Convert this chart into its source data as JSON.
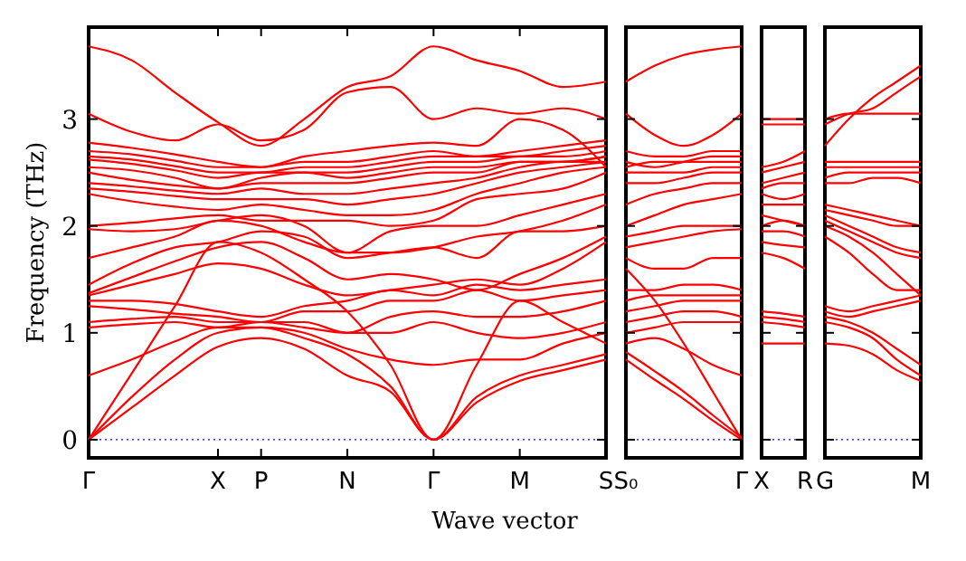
{
  "chart_data": [
    {
      "type": "line",
      "ylabel": "Frequency (THz)",
      "xlabel": "Wave vector",
      "categories": [
        "Γ",
        null,
        null,
        "X",
        "P",
        null,
        "N",
        null,
        "Γ",
        null,
        "M",
        null,
        "S"
      ],
      "ylim": [
        -0.17,
        3.86
      ],
      "yticks": [
        0,
        1,
        2,
        3
      ],
      "ref_lines": [
        {
          "axis": "y",
          "value": 0,
          "color": "#0000ff",
          "line_style": "dotted"
        }
      ],
      "series": [
        {
          "color": "#ff0000",
          "values": [
            0,
            0.3,
            0.6,
            0.87,
            0.95,
            0.85,
            0.6,
            0.45,
            0,
            0.35,
            0.55,
            0.65,
            0.75
          ]
        },
        {
          "color": "#ff0000",
          "values": [
            0,
            0.4,
            0.75,
            1.0,
            1.05,
            0.95,
            0.8,
            0.5,
            0,
            0.4,
            0.6,
            0.7,
            0.8
          ]
        },
        {
          "color": "#ff0000",
          "values": [
            0,
            0.62,
            1.25,
            1.85,
            1.75,
            1.5,
            1.2,
            0.7,
            0,
            0.7,
            1.3,
            1.1,
            0.9
          ]
        },
        {
          "color": "#ff0000",
          "values": [
            0.6,
            0.75,
            0.92,
            1.05,
            1.05,
            1.0,
            0.85,
            0.75,
            0.7,
            0.75,
            0.75,
            0.9,
            1.0
          ]
        },
        {
          "color": "#ff0000",
          "values": [
            1.05,
            1.08,
            1.1,
            1.05,
            1.1,
            1.05,
            1.0,
            1.0,
            1.1,
            1.0,
            0.95,
            1.0,
            1.1
          ]
        },
        {
          "color": "#ff0000",
          "values": [
            1.1,
            1.13,
            1.15,
            1.1,
            1.1,
            1.1,
            1.0,
            1.15,
            1.2,
            1.15,
            1.15,
            1.2,
            1.3
          ]
        },
        {
          "color": "#ff0000",
          "values": [
            1.25,
            1.22,
            1.18,
            1.15,
            1.1,
            1.2,
            1.2,
            1.3,
            1.3,
            1.4,
            1.3,
            1.35,
            1.4
          ]
        },
        {
          "color": "#ff0000",
          "values": [
            1.3,
            1.3,
            1.27,
            1.2,
            1.15,
            1.25,
            1.3,
            1.4,
            1.35,
            1.45,
            1.4,
            1.45,
            1.5
          ]
        },
        {
          "color": "#ff0000",
          "values": [
            1.35,
            1.45,
            1.55,
            1.65,
            1.6,
            1.45,
            1.35,
            1.4,
            1.45,
            1.5,
            1.45,
            1.6,
            1.85
          ]
        },
        {
          "color": "#ff0000",
          "values": [
            1.37,
            1.52,
            1.67,
            1.8,
            1.85,
            1.7,
            1.5,
            1.55,
            1.5,
            1.4,
            1.55,
            1.7,
            1.9
          ]
        },
        {
          "color": "#ff0000",
          "values": [
            1.45,
            1.65,
            1.8,
            1.85,
            1.95,
            1.9,
            1.7,
            1.75,
            1.8,
            1.7,
            1.95,
            1.95,
            2.0
          ]
        },
        {
          "color": "#ff0000",
          "values": [
            1.7,
            1.8,
            1.9,
            2.05,
            2.0,
            1.85,
            1.75,
            1.75,
            1.8,
            1.9,
            1.95,
            2.05,
            2.2
          ]
        },
        {
          "color": "#ff0000",
          "values": [
            1.97,
            1.95,
            1.97,
            2.05,
            2.1,
            2.0,
            1.75,
            1.95,
            2.0,
            2.0,
            2.1,
            2.2,
            2.3
          ]
        },
        {
          "color": "#ff0000",
          "values": [
            2.0,
            2.03,
            2.07,
            2.1,
            2.05,
            2.05,
            2.05,
            2.0,
            2.05,
            2.25,
            2.3,
            2.35,
            2.5
          ]
        },
        {
          "color": "#ff0000",
          "values": [
            2.3,
            2.23,
            2.18,
            2.15,
            2.2,
            2.15,
            2.1,
            2.1,
            2.15,
            2.3,
            2.4,
            2.5,
            2.55
          ]
        },
        {
          "color": "#ff0000",
          "values": [
            2.35,
            2.32,
            2.28,
            2.25,
            2.25,
            2.25,
            2.2,
            2.25,
            2.3,
            2.4,
            2.5,
            2.55,
            2.6
          ]
        },
        {
          "color": "#ff0000",
          "values": [
            2.4,
            2.37,
            2.33,
            2.3,
            2.35,
            2.3,
            2.3,
            2.35,
            2.4,
            2.45,
            2.55,
            2.6,
            2.6
          ]
        },
        {
          "color": "#ff0000",
          "values": [
            2.5,
            2.43,
            2.38,
            2.35,
            2.4,
            2.4,
            2.4,
            2.45,
            2.5,
            2.5,
            2.6,
            2.6,
            2.65
          ]
        },
        {
          "color": "#ff0000",
          "values": [
            2.55,
            2.52,
            2.45,
            2.35,
            2.45,
            2.5,
            2.45,
            2.5,
            2.55,
            2.55,
            2.6,
            2.6,
            2.65
          ]
        },
        {
          "color": "#ff0000",
          "values": [
            2.62,
            2.58,
            2.52,
            2.45,
            2.5,
            2.5,
            2.5,
            2.55,
            2.6,
            2.6,
            2.65,
            2.65,
            2.7
          ]
        },
        {
          "color": "#ff0000",
          "values": [
            2.65,
            2.62,
            2.56,
            2.5,
            2.5,
            2.55,
            2.55,
            2.6,
            2.65,
            2.65,
            2.65,
            2.7,
            2.75
          ]
        },
        {
          "color": "#ff0000",
          "values": [
            2.7,
            2.67,
            2.61,
            2.55,
            2.55,
            2.6,
            2.6,
            2.65,
            2.7,
            2.65,
            2.7,
            2.75,
            2.8
          ]
        },
        {
          "color": "#ff0000",
          "values": [
            2.78,
            2.73,
            2.67,
            2.6,
            2.55,
            2.65,
            2.7,
            2.75,
            2.78,
            2.75,
            3.0,
            2.9,
            2.55
          ]
        },
        {
          "color": "#ff0000",
          "values": [
            3.05,
            2.88,
            2.8,
            2.95,
            2.8,
            2.9,
            3.25,
            3.3,
            3.0,
            3.1,
            3.05,
            3.1,
            3.0
          ]
        },
        {
          "color": "#ff0000",
          "values": [
            3.68,
            3.55,
            3.25,
            2.97,
            2.75,
            3.0,
            3.3,
            3.4,
            3.68,
            3.55,
            3.45,
            3.3,
            3.35
          ]
        }
      ]
    },
    {
      "type": "line",
      "categories": [
        "S₀",
        null,
        null,
        null,
        "Γ"
      ],
      "ylim": [
        -0.17,
        3.86
      ],
      "yticks": [
        0,
        1,
        2,
        3
      ],
      "tick_labels": "x",
      "ref_lines": [
        {
          "axis": "y",
          "value": 0,
          "color": "#0000ff",
          "line_style": "dotted"
        }
      ],
      "series": [
        {
          "color": "#ff0000",
          "values": [
            0.75,
            0.56,
            0.38,
            0.18,
            0
          ]
        },
        {
          "color": "#ff0000",
          "values": [
            0.82,
            0.64,
            0.45,
            0.23,
            0.02
          ]
        },
        {
          "color": "#ff0000",
          "values": [
            1.6,
            1.3,
            0.9,
            0.45,
            0
          ]
        },
        {
          "color": "#ff0000",
          "values": [
            0.9,
            0.95,
            0.85,
            0.7,
            0.6
          ]
        },
        {
          "color": "#ff0000",
          "values": [
            1.0,
            1.05,
            1.1,
            1.1,
            1.1
          ]
        },
        {
          "color": "#ff0000",
          "values": [
            1.1,
            1.15,
            1.2,
            1.2,
            1.15
          ]
        },
        {
          "color": "#ff0000",
          "values": [
            1.2,
            1.25,
            1.3,
            1.3,
            1.3
          ]
        },
        {
          "color": "#ff0000",
          "values": [
            1.3,
            1.35,
            1.35,
            1.35,
            1.35
          ]
        },
        {
          "color": "#ff0000",
          "values": [
            1.4,
            1.4,
            1.45,
            1.45,
            1.4
          ]
        },
        {
          "color": "#ff0000",
          "values": [
            1.7,
            1.6,
            1.6,
            1.7,
            1.7
          ]
        },
        {
          "color": "#ff0000",
          "values": [
            1.8,
            1.85,
            1.9,
            1.95,
            1.97
          ]
        },
        {
          "color": "#ff0000",
          "values": [
            1.9,
            1.95,
            2.0,
            2.0,
            2.0
          ]
        },
        {
          "color": "#ff0000",
          "values": [
            2.0,
            2.1,
            2.2,
            2.25,
            2.3
          ]
        },
        {
          "color": "#ff0000",
          "values": [
            2.2,
            2.3,
            2.35,
            2.4,
            2.4
          ]
        },
        {
          "color": "#ff0000",
          "values": [
            2.4,
            2.4,
            2.45,
            2.5,
            2.5
          ]
        },
        {
          "color": "#ff0000",
          "values": [
            2.5,
            2.5,
            2.5,
            2.55,
            2.55
          ]
        },
        {
          "color": "#ff0000",
          "values": [
            2.55,
            2.6,
            2.6,
            2.6,
            2.6
          ]
        },
        {
          "color": "#ff0000",
          "values": [
            2.6,
            2.55,
            2.6,
            2.65,
            2.65
          ]
        },
        {
          "color": "#ff0000",
          "values": [
            2.7,
            2.65,
            2.65,
            2.7,
            2.7
          ]
        },
        {
          "color": "#ff0000",
          "values": [
            3.05,
            2.85,
            2.75,
            2.85,
            3.05
          ]
        },
        {
          "color": "#ff0000",
          "values": [
            3.35,
            3.5,
            3.6,
            3.65,
            3.68
          ]
        }
      ]
    },
    {
      "type": "line",
      "categories": [
        "X",
        null,
        "R"
      ],
      "ylim": [
        -0.17,
        3.86
      ],
      "yticks": [
        0,
        1,
        2,
        3
      ],
      "tick_labels": "x",
      "ref_lines": [
        {
          "axis": "y",
          "value": 0,
          "color": "#0000ff",
          "line_style": "dotted"
        }
      ],
      "series": [
        {
          "color": "#ff0000",
          "values": [
            0.9,
            0.9,
            0.9
          ]
        },
        {
          "color": "#ff0000",
          "values": [
            1.1,
            1.08,
            1.05
          ]
        },
        {
          "color": "#ff0000",
          "values": [
            1.15,
            1.13,
            1.1
          ]
        },
        {
          "color": "#ff0000",
          "values": [
            1.2,
            1.18,
            1.15
          ]
        },
        {
          "color": "#ff0000",
          "values": [
            1.75,
            1.7,
            1.6
          ]
        },
        {
          "color": "#ff0000",
          "values": [
            1.85,
            1.82,
            1.8
          ]
        },
        {
          "color": "#ff0000",
          "values": [
            1.95,
            1.95,
            1.9
          ]
        },
        {
          "color": "#ff0000",
          "values": [
            2.0,
            2.05,
            2.0
          ]
        },
        {
          "color": "#ff0000",
          "values": [
            2.1,
            2.05,
            2.0
          ]
        },
        {
          "color": "#ff0000",
          "values": [
            2.2,
            2.2,
            2.2
          ]
        },
        {
          "color": "#ff0000",
          "values": [
            2.3,
            2.25,
            2.3
          ]
        },
        {
          "color": "#ff0000",
          "values": [
            2.35,
            2.4,
            2.4
          ]
        },
        {
          "color": "#ff0000",
          "values": [
            2.4,
            2.45,
            2.5
          ]
        },
        {
          "color": "#ff0000",
          "values": [
            2.5,
            2.55,
            2.6
          ]
        },
        {
          "color": "#ff0000",
          "values": [
            2.55,
            2.6,
            2.7
          ]
        },
        {
          "color": "#ff0000",
          "values": [
            2.95,
            2.95,
            2.95
          ]
        },
        {
          "color": "#ff0000",
          "values": [
            3.0,
            3.0,
            3.0
          ]
        }
      ]
    },
    {
      "type": "line",
      "categories": [
        "G",
        null,
        null,
        null,
        "M"
      ],
      "ylim": [
        -0.17,
        3.86
      ],
      "yticks": [
        0,
        1,
        2,
        3
      ],
      "tick_labels": "x",
      "ref_lines": [
        {
          "axis": "y",
          "value": 0,
          "color": "#0000ff",
          "line_style": "dotted"
        }
      ],
      "series": [
        {
          "color": "#ff0000",
          "values": [
            0.9,
            0.88,
            0.8,
            0.65,
            0.55
          ]
        },
        {
          "color": "#ff0000",
          "values": [
            1.1,
            1.05,
            0.95,
            0.75,
            0.6
          ]
        },
        {
          "color": "#ff0000",
          "values": [
            1.15,
            1.1,
            1.0,
            0.85,
            0.7
          ]
        },
        {
          "color": "#ff0000",
          "values": [
            1.2,
            1.15,
            1.2,
            1.25,
            1.3
          ]
        },
        {
          "color": "#ff0000",
          "values": [
            1.25,
            1.2,
            1.25,
            1.3,
            1.35
          ]
        },
        {
          "color": "#ff0000",
          "values": [
            1.9,
            1.75,
            1.55,
            1.4,
            1.4
          ]
        },
        {
          "color": "#ff0000",
          "values": [
            2.0,
            1.9,
            1.75,
            1.55,
            1.35
          ]
        },
        {
          "color": "#ff0000",
          "values": [
            2.05,
            1.95,
            1.85,
            1.75,
            1.7
          ]
        },
        {
          "color": "#ff0000",
          "values": [
            2.1,
            2.0,
            1.9,
            1.8,
            1.75
          ]
        },
        {
          "color": "#ff0000",
          "values": [
            2.15,
            2.1,
            2.05,
            2.0,
            2.0
          ]
        },
        {
          "color": "#ff0000",
          "values": [
            2.2,
            2.15,
            2.1,
            2.05,
            2.0
          ]
        },
        {
          "color": "#ff0000",
          "values": [
            2.4,
            2.4,
            2.45,
            2.45,
            2.4
          ]
        },
        {
          "color": "#ff0000",
          "values": [
            2.45,
            2.5,
            2.5,
            2.5,
            2.5
          ]
        },
        {
          "color": "#ff0000",
          "values": [
            2.55,
            2.55,
            2.55,
            2.55,
            2.55
          ]
        },
        {
          "color": "#ff0000",
          "values": [
            2.6,
            2.6,
            2.6,
            2.6,
            2.6
          ]
        },
        {
          "color": "#ff0000",
          "values": [
            2.75,
            3.0,
            3.2,
            3.35,
            3.5
          ]
        },
        {
          "color": "#ff0000",
          "values": [
            2.95,
            3.05,
            3.1,
            3.25,
            3.4
          ]
        },
        {
          "color": "#ff0000",
          "values": [
            3.0,
            3.05,
            3.05,
            3.05,
            3.05
          ]
        }
      ]
    }
  ]
}
